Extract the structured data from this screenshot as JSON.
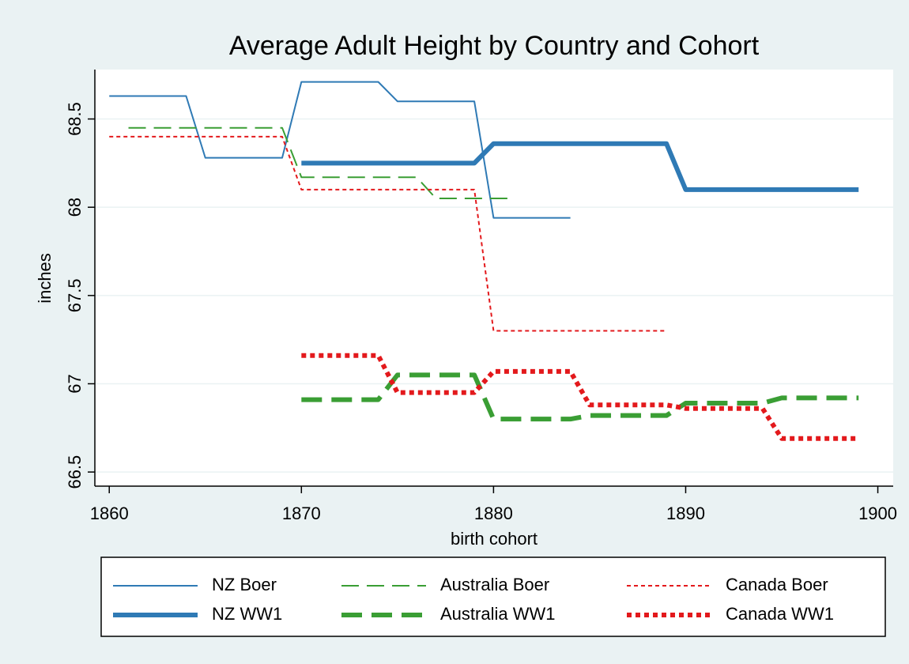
{
  "chart_data": {
    "type": "line",
    "title": "Average Adult Height by Country and Cohort",
    "x_label": "birth cohort",
    "y_label": "inches",
    "x": [
      1860,
      1861,
      1862,
      1863,
      1864,
      1865,
      1866,
      1867,
      1868,
      1869,
      1870,
      1871,
      1872,
      1873,
      1874,
      1875,
      1876,
      1877,
      1878,
      1879,
      1880,
      1881,
      1882,
      1883,
      1884,
      1885,
      1886,
      1887,
      1888,
      1889,
      1890,
      1891,
      1892,
      1893,
      1894,
      1895,
      1896,
      1897,
      1898,
      1899
    ],
    "series": [
      {
        "name": "NZ Boer",
        "color": "#2f7ab5",
        "style": "solid",
        "weight": "thin",
        "values": [
          68.63,
          68.63,
          68.63,
          68.63,
          68.63,
          68.28,
          68.28,
          68.28,
          68.28,
          68.28,
          68.71,
          68.71,
          68.71,
          68.71,
          68.71,
          68.6,
          68.6,
          68.6,
          68.6,
          68.6,
          67.94,
          67.94,
          67.94,
          67.94,
          67.94,
          null,
          null,
          null,
          null,
          null,
          null,
          null,
          null,
          null,
          null,
          null,
          null,
          null,
          null,
          null
        ]
      },
      {
        "name": "Australia Boer",
        "color": "#3a9e34",
        "style": "dash",
        "weight": "thin",
        "values": [
          null,
          68.45,
          68.45,
          68.45,
          68.45,
          68.45,
          68.45,
          68.45,
          68.45,
          68.45,
          68.17,
          68.17,
          68.17,
          68.17,
          68.17,
          68.17,
          68.17,
          68.05,
          68.05,
          68.05,
          68.05,
          68.05,
          null,
          null,
          null,
          null,
          null,
          null,
          null,
          null,
          null,
          null,
          null,
          null,
          null,
          null,
          null,
          null,
          null,
          null
        ]
      },
      {
        "name": "Canada Boer",
        "color": "#e3191c",
        "style": "dot",
        "weight": "thin",
        "values": [
          68.4,
          68.4,
          68.4,
          68.4,
          68.4,
          68.4,
          68.4,
          68.4,
          68.4,
          68.4,
          68.1,
          68.1,
          68.1,
          68.1,
          68.1,
          68.1,
          68.1,
          68.1,
          68.1,
          68.1,
          67.3,
          67.3,
          67.3,
          67.3,
          67.3,
          67.3,
          67.3,
          67.3,
          67.3,
          67.3,
          null,
          null,
          null,
          null,
          null,
          null,
          null,
          null,
          null,
          null
        ]
      },
      {
        "name": "NZ WW1",
        "color": "#2f7ab5",
        "style": "solid",
        "weight": "thick",
        "values": [
          null,
          null,
          null,
          null,
          null,
          null,
          null,
          null,
          null,
          null,
          68.25,
          68.25,
          68.25,
          68.25,
          68.25,
          68.25,
          68.25,
          68.25,
          68.25,
          68.25,
          68.36,
          68.36,
          68.36,
          68.36,
          68.36,
          68.36,
          68.36,
          68.36,
          68.36,
          68.36,
          68.1,
          68.1,
          68.1,
          68.1,
          68.1,
          68.1,
          68.1,
          68.1,
          68.1,
          68.1
        ]
      },
      {
        "name": "Australia WW1",
        "color": "#3a9e34",
        "style": "dash",
        "weight": "thick",
        "values": [
          null,
          null,
          null,
          null,
          null,
          null,
          null,
          null,
          null,
          null,
          66.91,
          66.91,
          66.91,
          66.91,
          66.91,
          67.05,
          67.05,
          67.05,
          67.05,
          67.05,
          66.8,
          66.8,
          66.8,
          66.8,
          66.8,
          66.82,
          66.82,
          66.82,
          66.82,
          66.82,
          66.89,
          66.89,
          66.89,
          66.89,
          66.89,
          66.92,
          66.92,
          66.92,
          66.92,
          66.92
        ]
      },
      {
        "name": "Canada WW1",
        "color": "#e3191c",
        "style": "dot",
        "weight": "thick",
        "values": [
          null,
          null,
          null,
          null,
          null,
          null,
          null,
          null,
          null,
          null,
          67.16,
          67.16,
          67.16,
          67.16,
          67.16,
          66.95,
          66.95,
          66.95,
          66.95,
          66.95,
          67.07,
          67.07,
          67.07,
          67.07,
          67.07,
          66.88,
          66.88,
          66.88,
          66.88,
          66.88,
          66.86,
          66.86,
          66.86,
          66.86,
          66.86,
          66.69,
          66.69,
          66.69,
          66.69,
          66.69
        ]
      }
    ],
    "xlim": [
      1859.25,
      1900.8
    ],
    "xticks": [
      1860,
      1870,
      1880,
      1890,
      1900
    ],
    "ylim": [
      66.42,
      68.78
    ],
    "yticks": [
      66.5,
      67,
      67.5,
      68,
      68.5
    ],
    "grid": true,
    "legend": "bottom"
  }
}
